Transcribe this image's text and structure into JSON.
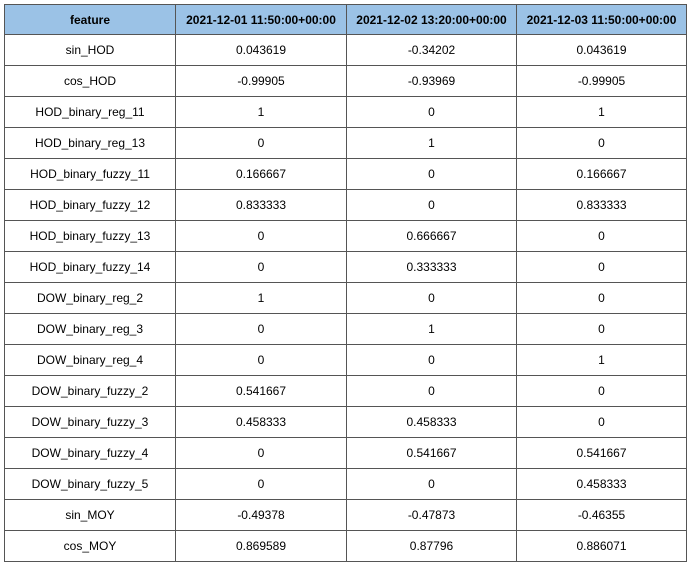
{
  "table": {
    "columns": [
      "feature",
      "2021-12-01 11:50:00+00:00",
      "2021-12-02 13:20:00+00:00",
      "2021-12-03 11:50:00+00:00"
    ],
    "rows": [
      [
        "sin_HOD",
        "0.043619",
        "-0.34202",
        "0.043619"
      ],
      [
        "cos_HOD",
        "-0.99905",
        "-0.93969",
        "-0.99905"
      ],
      [
        "HOD_binary_reg_11",
        "1",
        "0",
        "1"
      ],
      [
        "HOD_binary_reg_13",
        "0",
        "1",
        "0"
      ],
      [
        "HOD_binary_fuzzy_11",
        "0.166667",
        "0",
        "0.166667"
      ],
      [
        "HOD_binary_fuzzy_12",
        "0.833333",
        "0",
        "0.833333"
      ],
      [
        "HOD_binary_fuzzy_13",
        "0",
        "0.666667",
        "0"
      ],
      [
        "HOD_binary_fuzzy_14",
        "0",
        "0.333333",
        "0"
      ],
      [
        "DOW_binary_reg_2",
        "1",
        "0",
        "0"
      ],
      [
        "DOW_binary_reg_3",
        "0",
        "1",
        "0"
      ],
      [
        "DOW_binary_reg_4",
        "0",
        "0",
        "1"
      ],
      [
        "DOW_binary_fuzzy_2",
        "0.541667",
        "0",
        "0"
      ],
      [
        "DOW_binary_fuzzy_3",
        "0.458333",
        "0.458333",
        "0"
      ],
      [
        "DOW_binary_fuzzy_4",
        "0",
        "0.541667",
        "0.541667"
      ],
      [
        "DOW_binary_fuzzy_5",
        "0",
        "0",
        "0.458333"
      ],
      [
        "sin_MOY",
        "-0.49378",
        "-0.47873",
        "-0.46355"
      ],
      [
        "cos_MOY",
        "0.869589",
        "0.87796",
        "0.886071"
      ]
    ]
  },
  "colors": {
    "header_background": "#9bc2e6",
    "border": "#555555",
    "text": "#000000"
  }
}
